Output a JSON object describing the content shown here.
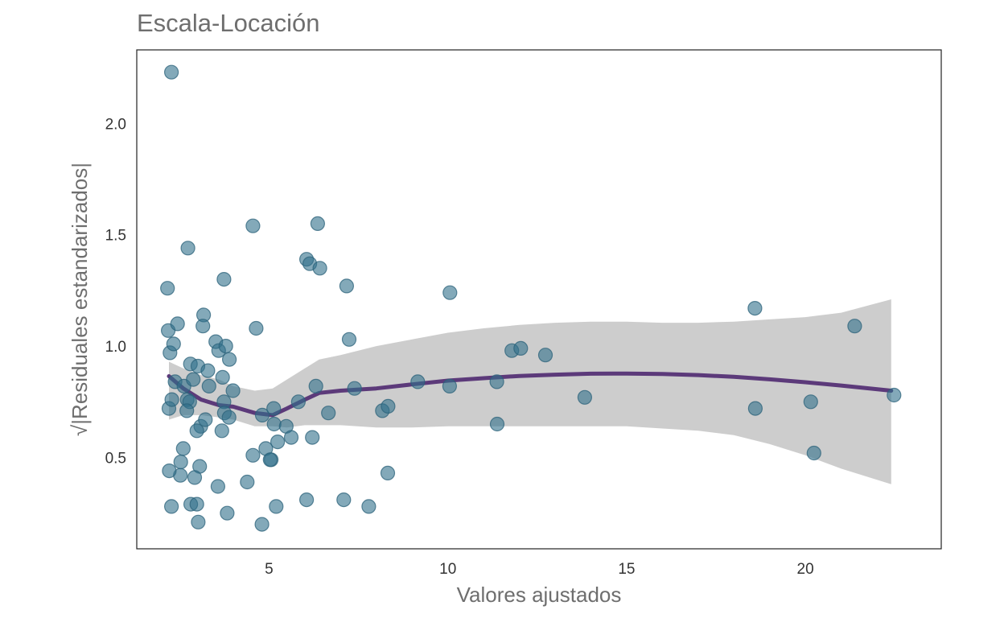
{
  "chart_data": {
    "type": "scatter",
    "title": "Escala-Locación",
    "xlabel": "Valores ajustados",
    "ylabel": "√|Residuales estandarizados|",
    "xlim": [
      1.3,
      23.8
    ],
    "ylim": [
      0.09,
      2.33
    ],
    "xticks": [
      5,
      10,
      15,
      20
    ],
    "yticks": [
      0.5,
      1.0,
      1.5,
      2.0
    ],
    "xtick_labels": [
      "5",
      "10",
      "15",
      "20"
    ],
    "ytick_labels": [
      "0.5",
      "1.0",
      "1.5",
      "2.0"
    ],
    "grid": false,
    "legend": "none",
    "colors": {
      "points": "#31708a",
      "point_stroke": "#2b6279",
      "smooth_line": "#5c3a7a",
      "confidence_band": "#c8c8c8",
      "frame": "#222222"
    },
    "points": [
      [
        2.27,
        2.23
      ],
      [
        2.16,
        1.26
      ],
      [
        2.18,
        1.07
      ],
      [
        2.23,
        0.97
      ],
      [
        2.33,
        1.01
      ],
      [
        2.44,
        1.1
      ],
      [
        2.73,
        1.44
      ],
      [
        3.17,
        1.14
      ],
      [
        3.15,
        1.09
      ],
      [
        3.74,
        1.3
      ],
      [
        2.2,
        0.72
      ],
      [
        2.28,
        0.76
      ],
      [
        2.37,
        0.84
      ],
      [
        2.62,
        0.82
      ],
      [
        2.8,
        0.92
      ],
      [
        2.71,
        0.76
      ],
      [
        2.88,
        0.85
      ],
      [
        3.01,
        0.91
      ],
      [
        2.78,
        0.75
      ],
      [
        2.7,
        0.71
      ],
      [
        3.09,
        0.64
      ],
      [
        3.22,
        0.67
      ],
      [
        3.29,
        0.89
      ],
      [
        3.32,
        0.82
      ],
      [
        3.51,
        1.02
      ],
      [
        3.59,
        0.98
      ],
      [
        3.79,
        1.0
      ],
      [
        3.89,
        0.94
      ],
      [
        3.7,
        0.86
      ],
      [
        3.74,
        0.75
      ],
      [
        3.75,
        0.7
      ],
      [
        3.88,
        0.68
      ],
      [
        3.99,
        0.8
      ],
      [
        3.68,
        0.62
      ],
      [
        2.98,
        0.62
      ],
      [
        2.6,
        0.54
      ],
      [
        2.53,
        0.48
      ],
      [
        2.52,
        0.42
      ],
      [
        2.21,
        0.44
      ],
      [
        3.06,
        0.46
      ],
      [
        2.92,
        0.41
      ],
      [
        2.81,
        0.29
      ],
      [
        2.98,
        0.29
      ],
      [
        2.27,
        0.28
      ],
      [
        3.02,
        0.21
      ],
      [
        3.83,
        0.25
      ],
      [
        3.57,
        0.37
      ],
      [
        4.39,
        0.39
      ],
      [
        4.55,
        1.54
      ],
      [
        4.64,
        1.08
      ],
      [
        4.55,
        0.51
      ],
      [
        4.81,
        0.69
      ],
      [
        4.91,
        0.54
      ],
      [
        5.06,
        0.49
      ],
      [
        5.03,
        0.49
      ],
      [
        5.14,
        0.65
      ],
      [
        5.13,
        0.72
      ],
      [
        5.24,
        0.57
      ],
      [
        5.2,
        0.28
      ],
      [
        4.8,
        0.2
      ],
      [
        5.48,
        0.64
      ],
      [
        5.62,
        0.59
      ],
      [
        5.82,
        0.75
      ],
      [
        6.05,
        1.39
      ],
      [
        6.14,
        1.37
      ],
      [
        6.36,
        1.55
      ],
      [
        6.42,
        1.35
      ],
      [
        6.31,
        0.82
      ],
      [
        6.21,
        0.59
      ],
      [
        6.05,
        0.31
      ],
      [
        6.66,
        0.7
      ],
      [
        7.17,
        1.27
      ],
      [
        7.24,
        1.03
      ],
      [
        7.39,
        0.81
      ],
      [
        7.09,
        0.31
      ],
      [
        7.79,
        0.28
      ],
      [
        8.17,
        0.71
      ],
      [
        8.33,
        0.73
      ],
      [
        8.32,
        0.43
      ],
      [
        9.16,
        0.84
      ],
      [
        10.06,
        1.24
      ],
      [
        10.05,
        0.82
      ],
      [
        11.37,
        0.84
      ],
      [
        11.38,
        0.65
      ],
      [
        11.79,
        0.98
      ],
      [
        12.04,
        0.99
      ],
      [
        12.73,
        0.96
      ],
      [
        13.83,
        0.77
      ],
      [
        18.59,
        1.17
      ],
      [
        18.6,
        0.72
      ],
      [
        20.15,
        0.75
      ],
      [
        20.24,
        0.52
      ],
      [
        21.38,
        1.09
      ],
      [
        22.48,
        0.78
      ]
    ],
    "smooth": {
      "x": [
        2.2,
        2.6,
        3.1,
        3.6,
        4.0,
        4.6,
        5.1,
        5.5,
        6.0,
        6.4,
        7.0,
        8.0,
        9.0,
        10.0,
        11.0,
        12.0,
        13.0,
        14.0,
        15.0,
        16.0,
        17.0,
        18.0,
        19.0,
        20.0,
        21.0,
        22.4
      ],
      "y": [
        0.865,
        0.81,
        0.76,
        0.735,
        0.728,
        0.7,
        0.69,
        0.72,
        0.76,
        0.79,
        0.8,
        0.81,
        0.828,
        0.845,
        0.856,
        0.866,
        0.872,
        0.876,
        0.877,
        0.875,
        0.87,
        0.862,
        0.851,
        0.838,
        0.823,
        0.8
      ],
      "upper": [
        0.93,
        0.9,
        0.87,
        0.85,
        0.82,
        0.8,
        0.81,
        0.85,
        0.9,
        0.94,
        0.96,
        1.0,
        1.03,
        1.06,
        1.08,
        1.095,
        1.105,
        1.11,
        1.11,
        1.105,
        1.105,
        1.11,
        1.12,
        1.13,
        1.15,
        1.21
      ],
      "lower": [
        0.67,
        0.69,
        0.69,
        0.68,
        0.67,
        0.64,
        0.64,
        0.635,
        0.645,
        0.645,
        0.645,
        0.635,
        0.635,
        0.64,
        0.64,
        0.64,
        0.64,
        0.64,
        0.64,
        0.63,
        0.62,
        0.6,
        0.56,
        0.51,
        0.45,
        0.38
      ]
    }
  }
}
